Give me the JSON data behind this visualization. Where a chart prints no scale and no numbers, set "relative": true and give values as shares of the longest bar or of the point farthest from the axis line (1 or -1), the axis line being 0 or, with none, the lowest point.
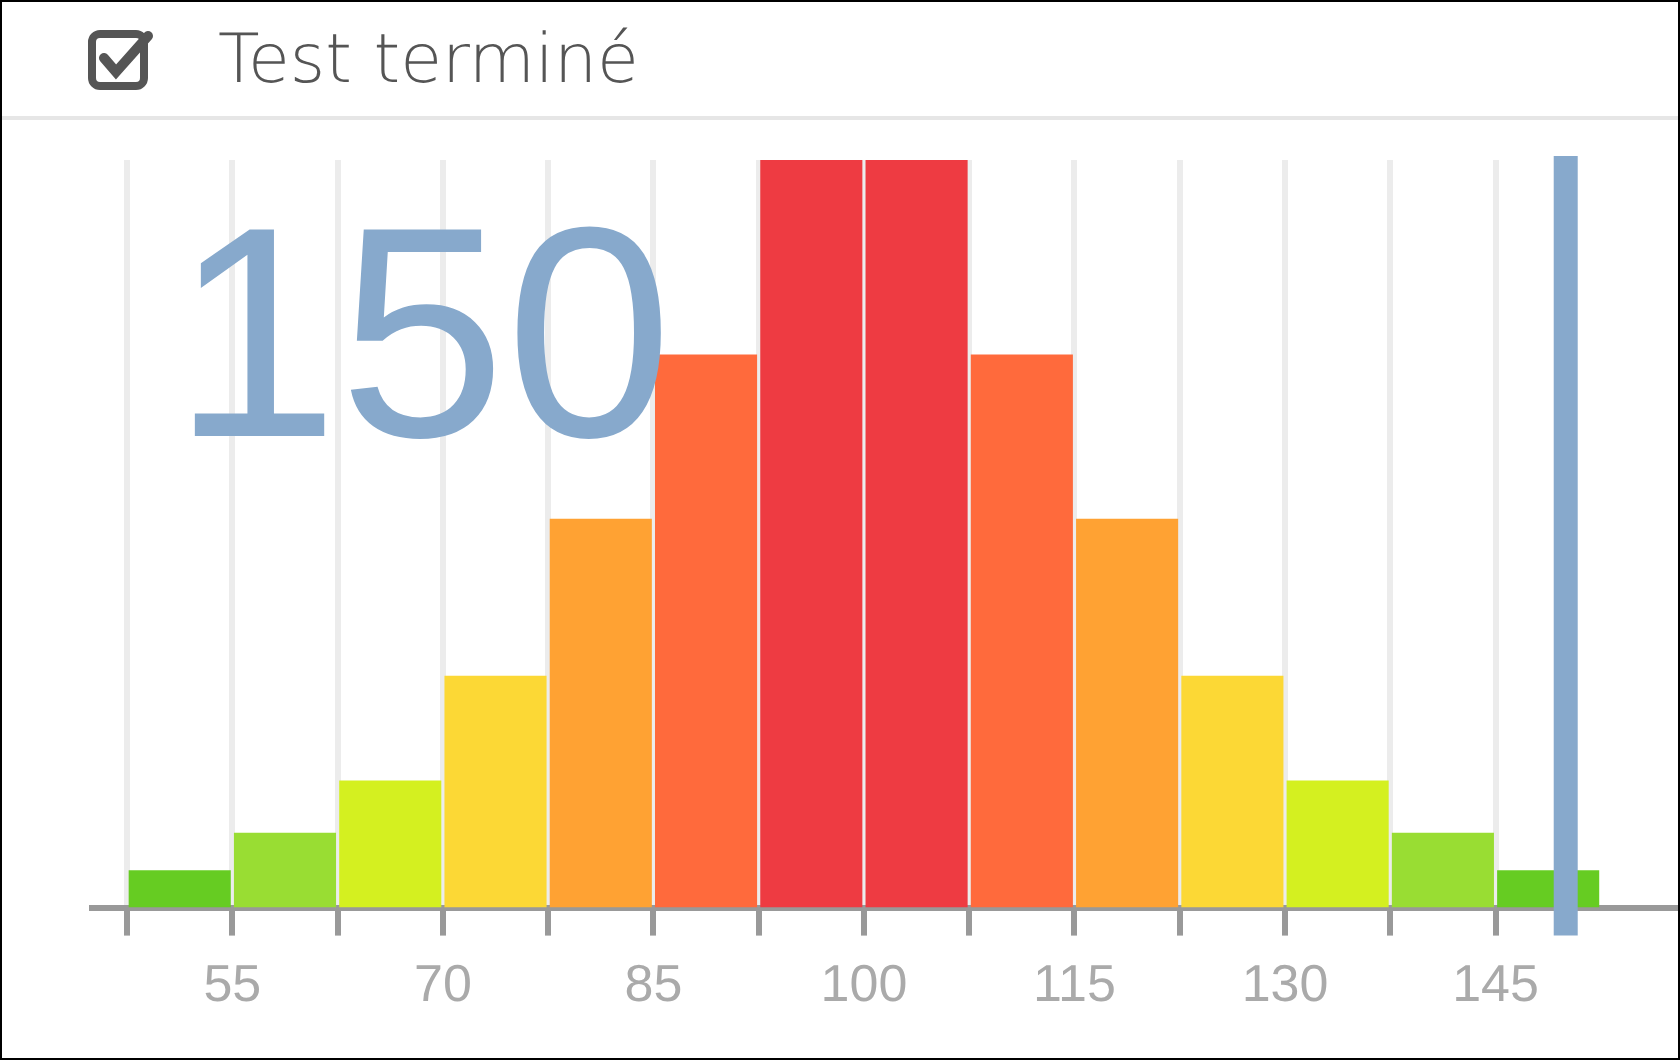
{
  "chart_data": {
    "type": "bar",
    "title": "Test terminé",
    "relative": true,
    "x": [
      51.25,
      58.75,
      66.25,
      73.75,
      81.25,
      88.75,
      96.25,
      103.75,
      111.25,
      118.75,
      126.25,
      133.75,
      141.25,
      148.75
    ],
    "values": [
      0.05,
      0.1,
      0.17,
      0.31,
      0.52,
      0.74,
      1,
      1,
      0.74,
      0.52,
      0.31,
      0.17,
      0.1,
      0.05
    ],
    "colors": [
      "#66cc22",
      "#99dd33",
      "#d4f020",
      "#fcd835",
      "#ffa233",
      "#ff6a3c",
      "#ee3b42",
      "#ee3b42",
      "#ff6a3c",
      "#ffa233",
      "#fcd835",
      "#d4f020",
      "#99dd33",
      "#66cc22"
    ],
    "xlim": [
      45,
      158
    ],
    "xticks": [
      {
        "value": 47.5,
        "label": null
      },
      55,
      {
        "value": 62.5,
        "label": null
      },
      70,
      {
        "value": 77.5,
        "label": null
      },
      85,
      {
        "value": 92.5,
        "label": null
      },
      100,
      {
        "value": 107.5,
        "label": null
      },
      115,
      {
        "value": 122.5,
        "label": null
      },
      130,
      {
        "value": 137.5,
        "label": null
      },
      145
    ],
    "grid": "x",
    "ref_lines": [
      {
        "axis": "x",
        "value": 150,
        "label": "150",
        "color": "#87a9cc"
      }
    ]
  }
}
